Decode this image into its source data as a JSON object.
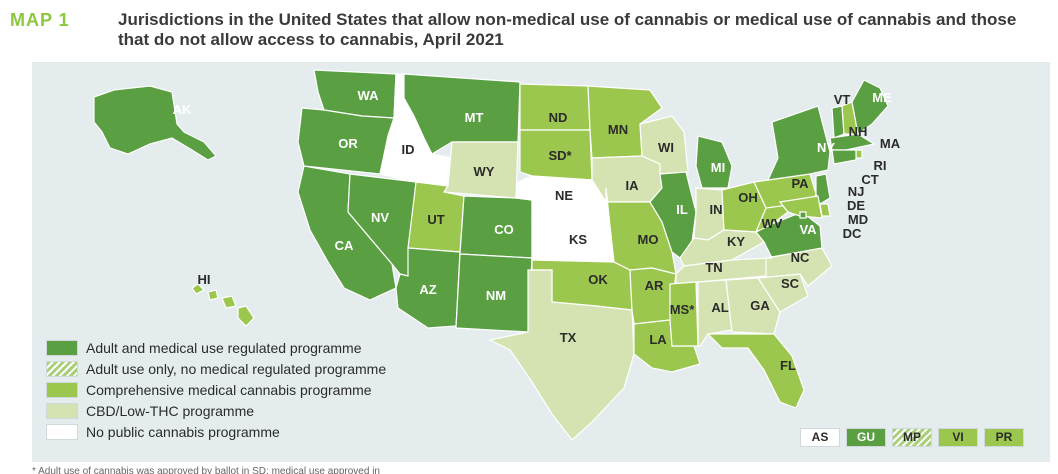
{
  "header": {
    "map_number": "MAP 1",
    "title": "Jurisdictions in the United States that allow non-medical use of cannabis or medical use of cannabis and those that do not allow access to cannabis, April 2021"
  },
  "colors": {
    "adult_medical": "#5aa043",
    "adult_only": "#a9cf7a",
    "medical": "#9cc74e",
    "cbd": "#d5e3b2",
    "none": "#ffffff",
    "background": "#e4ecee"
  },
  "legend": [
    {
      "key": "adult_medical",
      "label": "Adult and medical use regulated programme"
    },
    {
      "key": "adult_only",
      "label": "Adult use only, no medical regulated programme"
    },
    {
      "key": "medical",
      "label": "Comprehensive medical cannabis programme"
    },
    {
      "key": "cbd",
      "label": "CBD/Low-THC programme"
    },
    {
      "key": "none",
      "label": "No public cannabis programme"
    }
  ],
  "states": [
    {
      "code": "AK",
      "label": "AK",
      "category": "adult_medical"
    },
    {
      "code": "WA",
      "label": "WA",
      "category": "adult_medical"
    },
    {
      "code": "OR",
      "label": "OR",
      "category": "adult_medical"
    },
    {
      "code": "CA",
      "label": "CA",
      "category": "adult_medical"
    },
    {
      "code": "NV",
      "label": "NV",
      "category": "adult_medical"
    },
    {
      "code": "ID",
      "label": "ID",
      "category": "none"
    },
    {
      "code": "MT",
      "label": "MT",
      "category": "adult_medical"
    },
    {
      "code": "WY",
      "label": "WY",
      "category": "cbd"
    },
    {
      "code": "UT",
      "label": "UT",
      "category": "medical"
    },
    {
      "code": "AZ",
      "label": "AZ",
      "category": "adult_medical"
    },
    {
      "code": "CO",
      "label": "CO",
      "category": "adult_medical"
    },
    {
      "code": "NM",
      "label": "NM",
      "category": "adult_medical"
    },
    {
      "code": "ND",
      "label": "ND",
      "category": "medical"
    },
    {
      "code": "SD",
      "label": "SD*",
      "category": "medical"
    },
    {
      "code": "NE",
      "label": "NE",
      "category": "none"
    },
    {
      "code": "KS",
      "label": "KS",
      "category": "none"
    },
    {
      "code": "OK",
      "label": "OK",
      "category": "medical"
    },
    {
      "code": "TX",
      "label": "TX",
      "category": "cbd"
    },
    {
      "code": "MN",
      "label": "MN",
      "category": "medical"
    },
    {
      "code": "IA",
      "label": "IA",
      "category": "cbd"
    },
    {
      "code": "MO",
      "label": "MO",
      "category": "medical"
    },
    {
      "code": "AR",
      "label": "AR",
      "category": "medical"
    },
    {
      "code": "LA",
      "label": "LA",
      "category": "medical"
    },
    {
      "code": "WI",
      "label": "WI",
      "category": "cbd"
    },
    {
      "code": "IL",
      "label": "IL",
      "category": "adult_medical"
    },
    {
      "code": "MI",
      "label": "MI",
      "category": "adult_medical"
    },
    {
      "code": "IN",
      "label": "IN",
      "category": "cbd"
    },
    {
      "code": "OH",
      "label": "OH",
      "category": "medical"
    },
    {
      "code": "KY",
      "label": "KY",
      "category": "cbd"
    },
    {
      "code": "TN",
      "label": "TN",
      "category": "cbd"
    },
    {
      "code": "MS",
      "label": "MS*",
      "category": "medical"
    },
    {
      "code": "AL",
      "label": "AL",
      "category": "cbd"
    },
    {
      "code": "GA",
      "label": "GA",
      "category": "cbd"
    },
    {
      "code": "FL",
      "label": "FL",
      "category": "medical"
    },
    {
      "code": "SC",
      "label": "SC",
      "category": "cbd"
    },
    {
      "code": "NC",
      "label": "NC",
      "category": "cbd"
    },
    {
      "code": "VA",
      "label": "VA",
      "category": "adult_medical"
    },
    {
      "code": "WV",
      "label": "WV",
      "category": "medical"
    },
    {
      "code": "PA",
      "label": "PA",
      "category": "medical"
    },
    {
      "code": "NY",
      "label": "NY",
      "category": "adult_medical"
    },
    {
      "code": "VT",
      "label": "VT",
      "category": "adult_medical"
    },
    {
      "code": "NH",
      "label": "NH",
      "category": "medical"
    },
    {
      "code": "ME",
      "label": "ME",
      "category": "adult_medical"
    },
    {
      "code": "MA",
      "label": "MA",
      "category": "adult_medical"
    },
    {
      "code": "RI",
      "label": "RI",
      "category": "medical"
    },
    {
      "code": "CT",
      "label": "CT",
      "category": "adult_medical"
    },
    {
      "code": "NJ",
      "label": "NJ",
      "category": "adult_medical"
    },
    {
      "code": "DE",
      "label": "DE",
      "category": "medical"
    },
    {
      "code": "MD",
      "label": "MD",
      "category": "medical"
    },
    {
      "code": "DC",
      "label": "DC",
      "category": "adult_medical"
    },
    {
      "code": "HI",
      "label": "HI",
      "category": "medical"
    }
  ],
  "territories": [
    {
      "code": "AS",
      "category": "none"
    },
    {
      "code": "GU",
      "category": "adult_medical"
    },
    {
      "code": "MP",
      "category": "adult_only"
    },
    {
      "code": "VI",
      "category": "medical"
    },
    {
      "code": "PR",
      "category": "medical"
    }
  ],
  "footnote": "* Adult use of cannabis was approved by ballot in SD; medical use approved in MS"
}
